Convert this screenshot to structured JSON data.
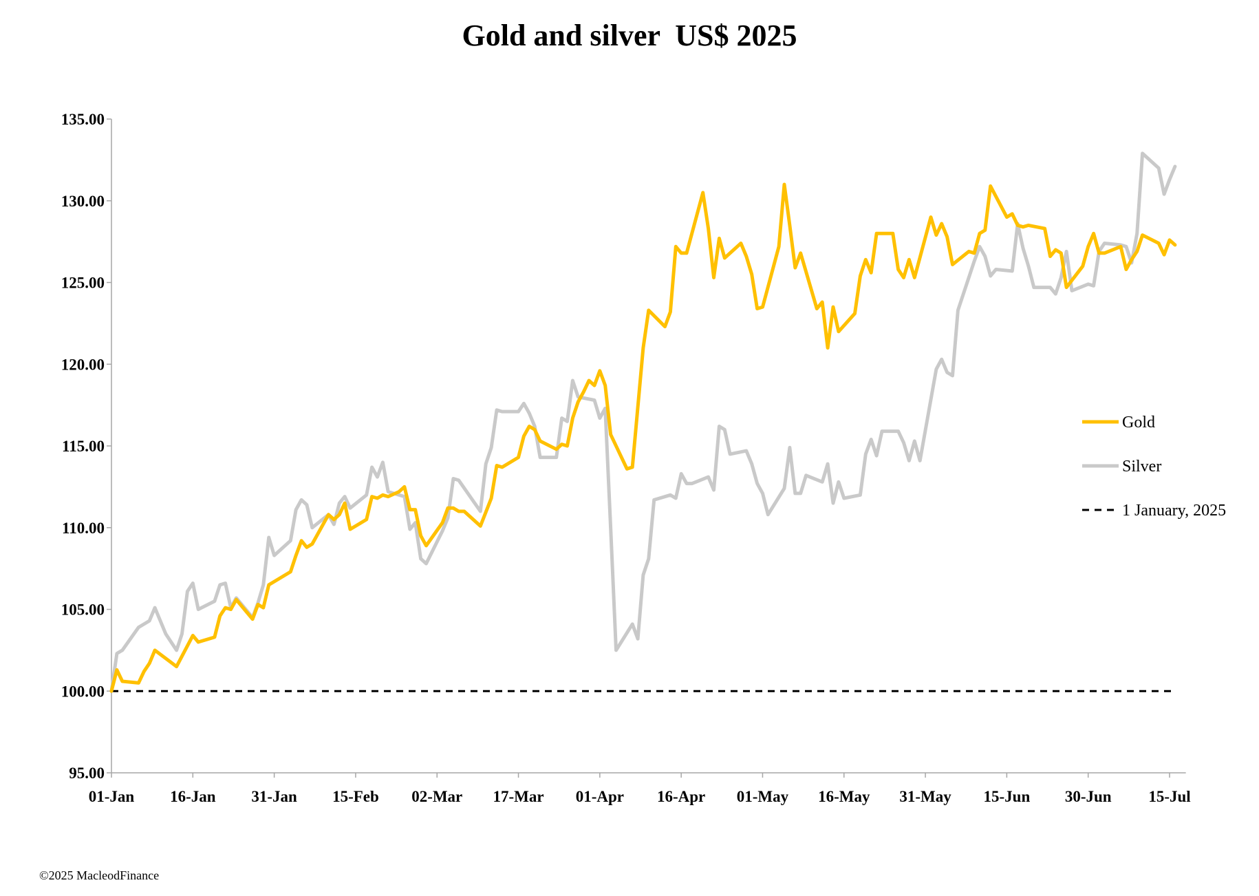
{
  "copyright": "©2025 MacleodFinance",
  "chart_data": {
    "type": "line",
    "title": "Gold and silver  US$ 2025",
    "xlabel": "",
    "ylabel": "",
    "ylim": [
      95,
      135
    ],
    "yticks": [
      "95.00",
      "100.00",
      "105.00",
      "110.00",
      "115.00",
      "120.00",
      "125.00",
      "130.00",
      "135.00"
    ],
    "xticks": [
      {
        "day": 0,
        "label": "01-Jan"
      },
      {
        "day": 15,
        "label": "16-Jan"
      },
      {
        "day": 30,
        "label": "31-Jan"
      },
      {
        "day": 45,
        "label": "15-Feb"
      },
      {
        "day": 60,
        "label": "02-Mar"
      },
      {
        "day": 75,
        "label": "17-Mar"
      },
      {
        "day": 90,
        "label": "01-Apr"
      },
      {
        "day": 105,
        "label": "16-Apr"
      },
      {
        "day": 120,
        "label": "01-May"
      },
      {
        "day": 135,
        "label": "16-May"
      },
      {
        "day": 150,
        "label": "31-May"
      },
      {
        "day": 165,
        "label": "15-Jun"
      },
      {
        "day": 180,
        "label": "30-Jun"
      },
      {
        "day": 195,
        "label": "15-Jul"
      }
    ],
    "xlim": [
      0,
      198
    ],
    "grid": false,
    "legend_position": "right",
    "series": [
      {
        "name": "Gold",
        "color": "#FFC000",
        "dash": "none",
        "points": [
          [
            0,
            100
          ],
          [
            1,
            101.3
          ],
          [
            2,
            100.6
          ],
          [
            5,
            100.5
          ],
          [
            6,
            101.2
          ],
          [
            7,
            101.7
          ],
          [
            8,
            102.5
          ],
          [
            10,
            102
          ],
          [
            12,
            101.5
          ],
          [
            15,
            103.4
          ],
          [
            16,
            103
          ],
          [
            19,
            103.3
          ],
          [
            20,
            104.6
          ],
          [
            21,
            105.1
          ],
          [
            22,
            105
          ],
          [
            23,
            105.6
          ],
          [
            26,
            104.4
          ],
          [
            27,
            105.3
          ],
          [
            28,
            105.1
          ],
          [
            29,
            106.5
          ],
          [
            30,
            106.7
          ],
          [
            33,
            107.3
          ],
          [
            34,
            108.3
          ],
          [
            35,
            109.2
          ],
          [
            36,
            108.8
          ],
          [
            37,
            109
          ],
          [
            40,
            110.8
          ],
          [
            41,
            110.5
          ],
          [
            42,
            110.8
          ],
          [
            43,
            111.5
          ],
          [
            44,
            109.9
          ],
          [
            47,
            110.5
          ],
          [
            48,
            111.9
          ],
          [
            49,
            111.8
          ],
          [
            50,
            112
          ],
          [
            51,
            111.9
          ],
          [
            53,
            112.2
          ],
          [
            54,
            112.5
          ],
          [
            55,
            111.1
          ],
          [
            56,
            111.1
          ],
          [
            57,
            109.5
          ],
          [
            58,
            108.9
          ],
          [
            61,
            110.3
          ],
          [
            62,
            111.2
          ],
          [
            63,
            111.2
          ],
          [
            64,
            111
          ],
          [
            65,
            111
          ],
          [
            68,
            110.1
          ],
          [
            70,
            111.8
          ],
          [
            71,
            113.8
          ],
          [
            72,
            113.7
          ],
          [
            75,
            114.3
          ],
          [
            76,
            115.6
          ],
          [
            77,
            116.2
          ],
          [
            78,
            116
          ],
          [
            79,
            115.3
          ],
          [
            82,
            114.8
          ],
          [
            83,
            115.1
          ],
          [
            84,
            115
          ],
          [
            85,
            116.7
          ],
          [
            86,
            117.7
          ],
          [
            87,
            118.3
          ],
          [
            88,
            119
          ],
          [
            89,
            118.7
          ],
          [
            90,
            119.6
          ],
          [
            91,
            118.7
          ],
          [
            92,
            115.7
          ],
          [
            95,
            113.6
          ],
          [
            96,
            113.7
          ],
          [
            98,
            121
          ],
          [
            99,
            123.3
          ],
          [
            102,
            122.3
          ],
          [
            103,
            123.2
          ],
          [
            104,
            127.2
          ],
          [
            105,
            126.8
          ],
          [
            106,
            126.8
          ],
          [
            109,
            130.5
          ],
          [
            110,
            128.3
          ],
          [
            111,
            125.3
          ],
          [
            112,
            127.7
          ],
          [
            113,
            126.5
          ],
          [
            116,
            127.4
          ],
          [
            117,
            126.6
          ],
          [
            118,
            125.5
          ],
          [
            119,
            123.4
          ],
          [
            120,
            123.5
          ],
          [
            123,
            127.2
          ],
          [
            124,
            131
          ],
          [
            125,
            128.5
          ],
          [
            126,
            125.9
          ],
          [
            127,
            126.8
          ],
          [
            130,
            123.4
          ],
          [
            131,
            123.8
          ],
          [
            132,
            121
          ],
          [
            133,
            123.5
          ],
          [
            134,
            122
          ],
          [
            137,
            123.1
          ],
          [
            138,
            125.4
          ],
          [
            139,
            126.4
          ],
          [
            140,
            125.6
          ],
          [
            141,
            128
          ],
          [
            144,
            128
          ],
          [
            145,
            125.8
          ],
          [
            146,
            125.3
          ],
          [
            147,
            126.4
          ],
          [
            148,
            125.3
          ],
          [
            151,
            129
          ],
          [
            152,
            127.9
          ],
          [
            153,
            128.6
          ],
          [
            154,
            127.8
          ],
          [
            155,
            126.1
          ],
          [
            158,
            126.9
          ],
          [
            159,
            126.8
          ],
          [
            160,
            128
          ],
          [
            161,
            128.2
          ],
          [
            162,
            130.9
          ],
          [
            165,
            129
          ],
          [
            166,
            129.2
          ],
          [
            167,
            128.5
          ],
          [
            168,
            128.4
          ],
          [
            169,
            128.5
          ],
          [
            172,
            128.3
          ],
          [
            173,
            126.6
          ],
          [
            174,
            127
          ],
          [
            175,
            126.8
          ],
          [
            176,
            124.7
          ],
          [
            179,
            126
          ],
          [
            180,
            127.2
          ],
          [
            181,
            128
          ],
          [
            182,
            126.8
          ],
          [
            183,
            126.8
          ],
          [
            186,
            127.2
          ],
          [
            187,
            125.8
          ],
          [
            188,
            126.4
          ],
          [
            189,
            126.9
          ],
          [
            190,
            127.9
          ],
          [
            193,
            127.4
          ],
          [
            194,
            126.7
          ],
          [
            195,
            127.6
          ],
          [
            196,
            127.3
          ]
        ]
      },
      {
        "name": "Silver",
        "color": "#C9C9C9",
        "dash": "none",
        "points": [
          [
            0,
            100
          ],
          [
            1,
            102.3
          ],
          [
            2,
            102.5
          ],
          [
            5,
            103.9
          ],
          [
            6,
            104.1
          ],
          [
            7,
            104.3
          ],
          [
            8,
            105.1
          ],
          [
            10,
            103.5
          ],
          [
            12,
            102.5
          ],
          [
            13,
            103.5
          ],
          [
            14,
            106.1
          ],
          [
            15,
            106.6
          ],
          [
            16,
            105
          ],
          [
            19,
            105.5
          ],
          [
            20,
            106.5
          ],
          [
            21,
            106.6
          ],
          [
            22,
            105.1
          ],
          [
            23,
            105.7
          ],
          [
            26,
            104.5
          ],
          [
            27,
            105.4
          ],
          [
            28,
            106.5
          ],
          [
            29,
            109.4
          ],
          [
            30,
            108.3
          ],
          [
            33,
            109.2
          ],
          [
            34,
            111.1
          ],
          [
            35,
            111.7
          ],
          [
            36,
            111.4
          ],
          [
            37,
            110
          ],
          [
            40,
            110.8
          ],
          [
            41,
            110.2
          ],
          [
            42,
            111.5
          ],
          [
            43,
            111.9
          ],
          [
            44,
            111.2
          ],
          [
            47,
            112
          ],
          [
            48,
            113.7
          ],
          [
            49,
            113.1
          ],
          [
            50,
            114
          ],
          [
            51,
            112.2
          ],
          [
            54,
            111.9
          ],
          [
            55,
            109.9
          ],
          [
            56,
            110.3
          ],
          [
            57,
            108.1
          ],
          [
            58,
            107.8
          ],
          [
            61,
            109.8
          ],
          [
            62,
            110.6
          ],
          [
            63,
            113
          ],
          [
            64,
            112.9
          ],
          [
            68,
            111
          ],
          [
            69,
            113.9
          ],
          [
            70,
            114.9
          ],
          [
            71,
            117.2
          ],
          [
            72,
            117.1
          ],
          [
            75,
            117.1
          ],
          [
            76,
            117.6
          ],
          [
            77,
            117
          ],
          [
            78,
            116.2
          ],
          [
            79,
            114.3
          ],
          [
            82,
            114.3
          ],
          [
            83,
            116.7
          ],
          [
            84,
            116.5
          ],
          [
            85,
            119
          ],
          [
            86,
            118
          ],
          [
            89,
            117.8
          ],
          [
            90,
            116.7
          ],
          [
            91,
            117.3
          ],
          [
            92,
            110
          ],
          [
            93,
            102.5
          ],
          [
            96,
            104.1
          ],
          [
            97,
            103.2
          ],
          [
            98,
            107.1
          ],
          [
            99,
            108.1
          ],
          [
            100,
            111.7
          ],
          [
            103,
            112
          ],
          [
            104,
            111.8
          ],
          [
            105,
            113.3
          ],
          [
            106,
            112.7
          ],
          [
            107,
            112.7
          ],
          [
            110,
            113.1
          ],
          [
            111,
            112.3
          ],
          [
            112,
            116.2
          ],
          [
            113,
            116
          ],
          [
            114,
            114.5
          ],
          [
            117,
            114.7
          ],
          [
            118,
            113.9
          ],
          [
            119,
            112.7
          ],
          [
            120,
            112.1
          ],
          [
            121,
            110.8
          ],
          [
            124,
            112.4
          ],
          [
            125,
            114.9
          ],
          [
            126,
            112.1
          ],
          [
            127,
            112.1
          ],
          [
            128,
            113.2
          ],
          [
            131,
            112.8
          ],
          [
            132,
            113.9
          ],
          [
            133,
            111.5
          ],
          [
            134,
            112.8
          ],
          [
            135,
            111.8
          ],
          [
            138,
            112
          ],
          [
            139,
            114.5
          ],
          [
            140,
            115.4
          ],
          [
            141,
            114.4
          ],
          [
            142,
            115.9
          ],
          [
            145,
            115.9
          ],
          [
            146,
            115.2
          ],
          [
            147,
            114.1
          ],
          [
            148,
            115.3
          ],
          [
            149,
            114.1
          ],
          [
            152,
            119.7
          ],
          [
            153,
            120.3
          ],
          [
            154,
            119.5
          ],
          [
            155,
            119.3
          ],
          [
            156,
            123.3
          ],
          [
            159,
            126.3
          ],
          [
            160,
            127.2
          ],
          [
            161,
            126.6
          ],
          [
            162,
            125.4
          ],
          [
            163,
            125.8
          ],
          [
            166,
            125.7
          ],
          [
            167,
            128.6
          ],
          [
            168,
            127.1
          ],
          [
            169,
            126
          ],
          [
            170,
            124.7
          ],
          [
            173,
            124.7
          ],
          [
            174,
            124.3
          ],
          [
            175,
            125.3
          ],
          [
            176,
            126.9
          ],
          [
            177,
            124.5
          ],
          [
            180,
            124.9
          ],
          [
            181,
            124.8
          ],
          [
            182,
            126.9
          ],
          [
            183,
            127.4
          ],
          [
            186,
            127.3
          ],
          [
            187,
            127.2
          ],
          [
            188,
            126.2
          ],
          [
            189,
            128
          ],
          [
            190,
            132.9
          ],
          [
            193,
            132
          ],
          [
            194,
            130.4
          ],
          [
            195,
            131.3
          ],
          [
            196,
            132.1
          ]
        ]
      },
      {
        "name": "1 January, 2025",
        "color": "#000000",
        "dash": "10,8",
        "points": [
          [
            0,
            100
          ],
          [
            196,
            100
          ]
        ]
      }
    ]
  }
}
